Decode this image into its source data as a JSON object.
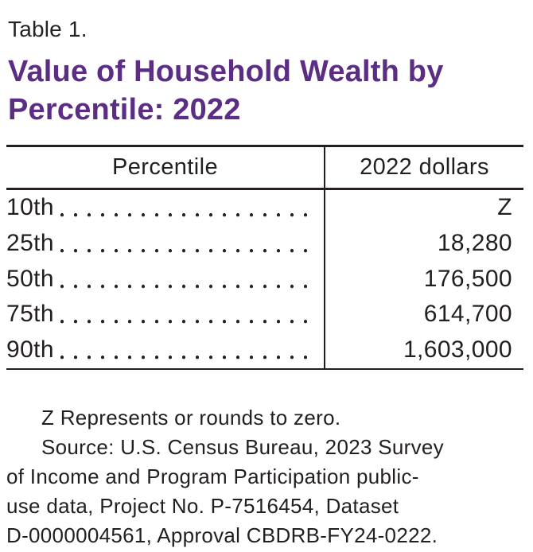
{
  "colors": {
    "accent": "#5b2d84",
    "text": "#231f20",
    "rule": "#231f20",
    "background": "#ffffff"
  },
  "header": {
    "table_label": "Table 1.",
    "title": "Value of Household Wealth by Percentile: 2022",
    "title_lines": [
      "Value of Household Wealth by",
      "Percentile: 2022"
    ]
  },
  "table": {
    "columns": [
      "Percentile",
      "2022 dollars"
    ],
    "leader_style": "dotted",
    "rows": [
      {
        "label": "10th",
        "value": "Z"
      },
      {
        "label": "25th",
        "value": "18,280"
      },
      {
        "label": "50th",
        "value": "176,500"
      },
      {
        "label": "75th",
        "value": "614,700"
      },
      {
        "label": "90th",
        "value": "1,603,000"
      }
    ]
  },
  "chart_data": {
    "type": "table",
    "title": "Value of Household Wealth by Percentile: 2022",
    "columns": [
      "Percentile",
      "2022 dollars"
    ],
    "categories": [
      "10th",
      "25th",
      "50th",
      "75th",
      "90th"
    ],
    "values": [
      "Z",
      18280,
      176500,
      614700,
      1603000
    ],
    "note": "Z Represents or rounds to zero."
  },
  "notes": {
    "full": [
      "Z Represents or rounds to zero.",
      "Source: U.S. Census Bureau, 2023 Survey of Income and Program Participation public-use data, Project No. P-7516454, Dataset D-0000004561, Approval CBDRB-FY24-0222."
    ],
    "lines": [
      "Z Represents or rounds to zero.",
      "Source: U.S. Census Bureau, 2023 Survey",
      "of Income and Program Participation public-",
      "use data, Project No. P-7516454, Dataset",
      "D-0000004561, Approval CBDRB-FY24-0222."
    ]
  }
}
